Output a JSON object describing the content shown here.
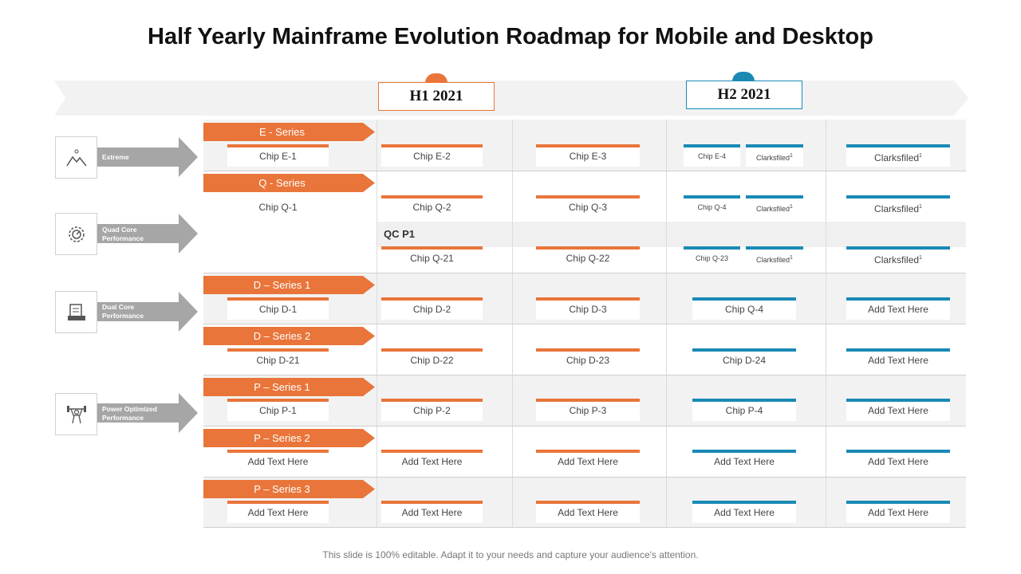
{
  "title": "Half Yearly Mainframe Evolution Roadmap for Mobile and Desktop",
  "periods": {
    "h1": "H1 2021",
    "h2": "H2 2021"
  },
  "categories": [
    {
      "label": "Extreme",
      "icon": "mountain-icon"
    },
    {
      "label": "Quad Core Performance",
      "icon": "gear-icon"
    },
    {
      "label": "Dual Core Performance",
      "icon": "document-icon"
    },
    {
      "label": "Power Optimized Performance",
      "icon": "weightlifter-icon"
    }
  ],
  "series": [
    "E - Series",
    "Q - Series",
    "D – Series 1",
    "D – Series 2",
    "P – Series 1",
    "P – Series 2",
    "P – Series 3"
  ],
  "qc_label": "QC P1",
  "rows": {
    "e": {
      "c1": "Chip E-1",
      "c2": "Chip E-2",
      "c3": "Chip E-3",
      "c4a": "Chip  E-4",
      "c4b": "Clarksfiled",
      "c5": "Clarksfiled"
    },
    "q": {
      "c1": "Chip Q-1",
      "c2": "Chip Q-2",
      "c3": "Chip Q-3",
      "c4a": "Chip  Q-4",
      "c4b": "Clarksfiled",
      "c5": "Clarksfiled"
    },
    "qc": {
      "c2": "Chip Q-21",
      "c3": "Chip Q-22",
      "c4a": "Chip  Q-23",
      "c4b": "Clarksfiled",
      "c5": "Clarksfiled"
    },
    "d1": {
      "c1": "Chip D-1",
      "c2": "Chip D-2",
      "c3": "Chip D-3",
      "c4": "Chip Q-4",
      "c5": "Add Text Here"
    },
    "d2": {
      "c1": "Chip D-21",
      "c2": "Chip D-22",
      "c3": "Chip D-23",
      "c4": "Chip D-24",
      "c5": "Add Text Here"
    },
    "p1": {
      "c1": "Chip P-1",
      "c2": "Chip P-2",
      "c3": "Chip P-3",
      "c4": "Chip P-4",
      "c5": "Add Text Here"
    },
    "p2": {
      "c1": "Add Text Here",
      "c2": "Add Text Here",
      "c3": "Add Text Here",
      "c4": "Add Text Here",
      "c5": "Add Text Here"
    },
    "p3": {
      "c1": "Add Text Here",
      "c2": "Add Text Here",
      "c3": "Add Text Here",
      "c4": "Add Text Here",
      "c5": "Add Text Here"
    }
  },
  "superscript": "1",
  "footer": "This slide is 100% editable. Adapt it to your needs and capture your audience's attention.",
  "colors": {
    "orange": "#e9753a",
    "blue": "#1a8ab5",
    "arrow_gray": "#a6a6a6"
  }
}
